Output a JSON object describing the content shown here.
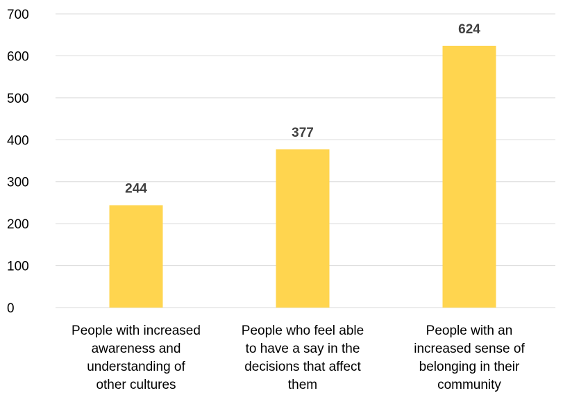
{
  "chart_data": {
    "type": "bar",
    "categories": [
      [
        "People with increased",
        "awareness and",
        "understanding of",
        "other cultures"
      ],
      [
        "People who feel able",
        "to have a say in the",
        "decisions that affect",
        "them"
      ],
      [
        "People with an",
        "increased sense of",
        "belonging in their",
        "community"
      ]
    ],
    "values": [
      244,
      377,
      624
    ],
    "data_labels": [
      "244",
      "377",
      "624"
    ],
    "y_ticks": [
      "0",
      "100",
      "200",
      "300",
      "400",
      "500",
      "600",
      "700"
    ],
    "ylim": [
      0,
      700
    ],
    "grid": true,
    "legend": "none",
    "title": "",
    "xlabel": "",
    "ylabel": "",
    "colors": {
      "bar": "#FFD54F",
      "grid": "#D9D9D9",
      "data_label": "#404040",
      "text": "#000000"
    }
  }
}
